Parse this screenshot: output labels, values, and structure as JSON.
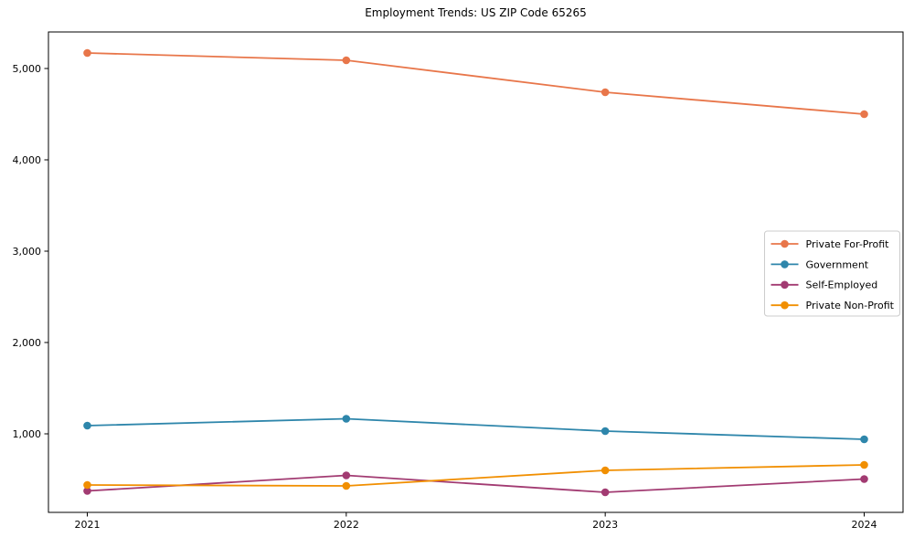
{
  "page": {
    "background": "#ffffff",
    "axes_edge_color": "#000000",
    "legend_border_color": "#cccccc"
  },
  "chart_data": {
    "type": "line",
    "title": "Employment Trends: US ZIP Code 65265",
    "xlabel": "",
    "ylabel": "",
    "x": [
      "2021",
      "2022",
      "2023",
      "2024"
    ],
    "series": [
      {
        "name": "Private For-Profit",
        "color": "#E8764A",
        "values": [
          5170,
          5090,
          4740,
          4500
        ]
      },
      {
        "name": "Government",
        "color": "#2E86AB",
        "values": [
          1090,
          1165,
          1030,
          940
        ]
      },
      {
        "name": "Self-Employed",
        "color": "#A23B72",
        "values": [
          375,
          545,
          360,
          505
        ]
      },
      {
        "name": "Private Non-Profit",
        "color": "#F18F01",
        "values": [
          440,
          430,
          600,
          660
        ]
      }
    ],
    "yticks": [
      {
        "value": 1000,
        "label": "1,000"
      },
      {
        "value": 2000,
        "label": "2,000"
      },
      {
        "value": 3000,
        "label": "3,000"
      },
      {
        "value": 4000,
        "label": "4,000"
      },
      {
        "value": 5000,
        "label": "5,000"
      }
    ],
    "ylim": [
      140,
      5400
    ],
    "grid": false,
    "marker": "circle",
    "legend_position": "center right"
  }
}
